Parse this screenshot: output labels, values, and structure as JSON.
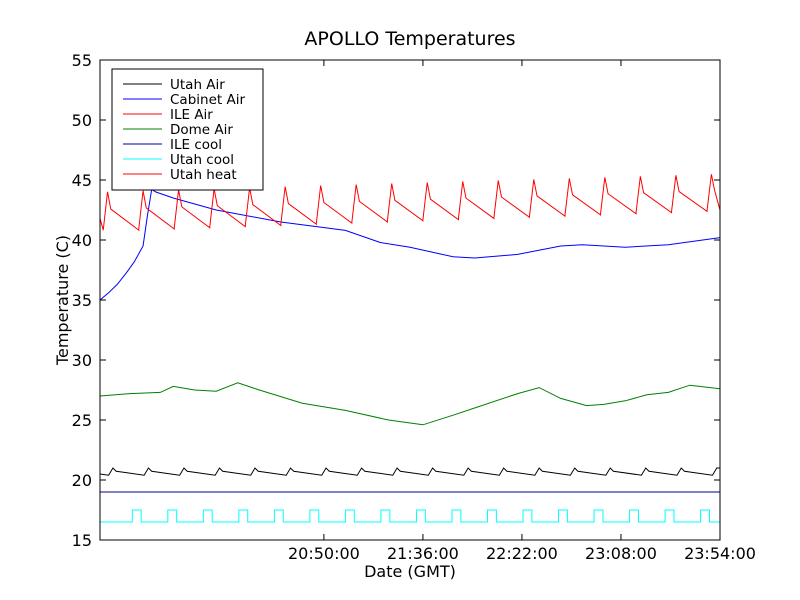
{
  "chart_data": {
    "type": "line",
    "title": "APOLLO Temperatures",
    "xlabel": "Date (GMT)",
    "ylabel": "Temperature (C)",
    "xlim": [
      1146,
      1434
    ],
    "ylim": [
      15,
      55
    ],
    "xticks": [
      {
        "value": 1250,
        "label": "20:50:00"
      },
      {
        "value": 1296,
        "label": "21:36:00"
      },
      {
        "value": 1342,
        "label": "22:22:00"
      },
      {
        "value": 1388,
        "label": "23:08:00"
      },
      {
        "value": 1434,
        "label": "23:54:00"
      }
    ],
    "yticks": [
      15,
      20,
      25,
      30,
      35,
      40,
      45,
      50,
      55
    ],
    "legend_position": "top-left",
    "series": [
      {
        "name": "Utah Air",
        "color": "#000000",
        "pattern": "sawtooth",
        "period": 16.5,
        "phase": 1152,
        "low": 20.4,
        "high": 21.0,
        "x": [
          1146,
          1434
        ],
        "values": [
          20.5,
          21.0
        ]
      },
      {
        "name": "Cabinet Air",
        "color": "#0000ff",
        "x": [
          1146,
          1150,
          1154,
          1158,
          1162,
          1166,
          1168,
          1170,
          1172,
          1180,
          1200,
          1230,
          1260,
          1276,
          1290,
          1300,
          1310,
          1320,
          1340,
          1360,
          1370,
          1390,
          1410,
          1434
        ],
        "values": [
          35.0,
          35.6,
          36.3,
          37.2,
          38.2,
          39.5,
          42.0,
          44.2,
          44.0,
          43.5,
          42.5,
          41.5,
          40.8,
          39.8,
          39.4,
          39.0,
          38.6,
          38.5,
          38.8,
          39.5,
          39.6,
          39.4,
          39.6,
          40.2
        ]
      },
      {
        "name": "ILE Air",
        "color": "#ff0000",
        "pattern": "sawtooth",
        "period": 16.5,
        "phase": 1166,
        "low_start": 40.8,
        "high_start": 44.0,
        "low_end": 42.5,
        "high_end": 45.5,
        "x": [
          1146,
          1434
        ],
        "values": [
          41.8,
          42.5
        ]
      },
      {
        "name": "Dome Air",
        "color": "#008000",
        "x": [
          1146,
          1160,
          1174,
          1180,
          1190,
          1200,
          1210,
          1220,
          1240,
          1260,
          1280,
          1296,
          1310,
          1320,
          1340,
          1350,
          1360,
          1372,
          1380,
          1390,
          1400,
          1410,
          1420,
          1434
        ],
        "values": [
          27.0,
          27.2,
          27.3,
          27.8,
          27.5,
          27.4,
          28.1,
          27.5,
          26.4,
          25.8,
          25.0,
          24.6,
          25.4,
          26.0,
          27.2,
          27.7,
          26.8,
          26.2,
          26.3,
          26.6,
          27.1,
          27.3,
          27.9,
          27.6
        ]
      },
      {
        "name": "ILE cool",
        "color": "#00008b",
        "x": [
          1146,
          1434
        ],
        "values": [
          19.0,
          19.0
        ]
      },
      {
        "name": "Utah cool",
        "color": "#00ffff",
        "pattern": "pulse",
        "period": 16.5,
        "phase": 1161,
        "low": 16.5,
        "high": 17.5,
        "duty": 0.25,
        "x": [
          1146,
          1434
        ],
        "values": [
          16.5,
          16.5
        ]
      },
      {
        "name": "Utah heat",
        "color": "#ff0000",
        "hidden": true,
        "x": [],
        "values": []
      }
    ]
  }
}
